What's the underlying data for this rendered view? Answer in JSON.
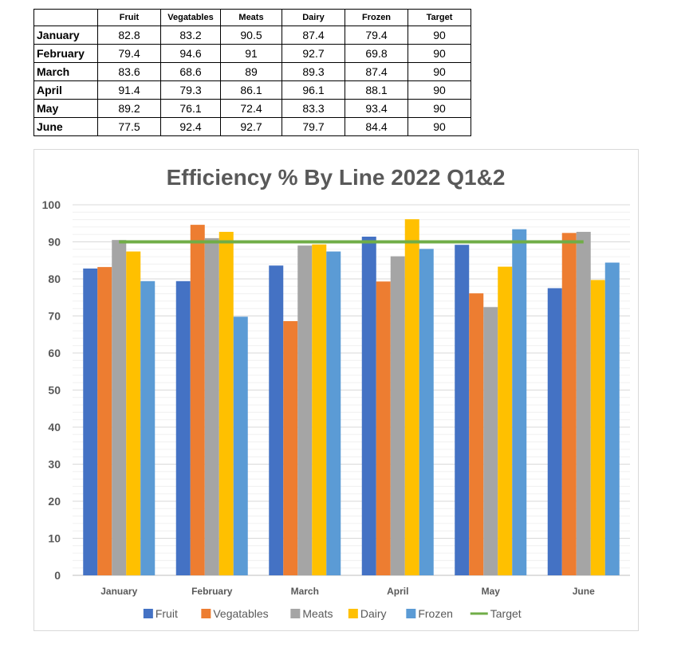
{
  "table": {
    "headers": [
      "",
      "Fruit",
      "Vegatables",
      "Meats",
      "Dairy",
      "Frozen",
      "Target"
    ],
    "rows": [
      {
        "label": "January",
        "values": [
          "82.8",
          "83.2",
          "90.5",
          "87.4",
          "79.4",
          "90"
        ]
      },
      {
        "label": "February",
        "values": [
          "79.4",
          "94.6",
          "91",
          "92.7",
          "69.8",
          "90"
        ]
      },
      {
        "label": "March",
        "values": [
          "83.6",
          "68.6",
          "89",
          "89.3",
          "87.4",
          "90"
        ]
      },
      {
        "label": "April",
        "values": [
          "91.4",
          "79.3",
          "86.1",
          "96.1",
          "88.1",
          "90"
        ]
      },
      {
        "label": "May",
        "values": [
          "89.2",
          "76.1",
          "72.4",
          "83.3",
          "93.4",
          "90"
        ]
      },
      {
        "label": "June",
        "values": [
          "77.5",
          "92.4",
          "92.7",
          "79.7",
          "84.4",
          "90"
        ]
      }
    ]
  },
  "chart_data": {
    "type": "bar",
    "title": "Efficiency % By Line 2022 Q1&2",
    "xlabel": "",
    "ylabel": "",
    "ylim": [
      0,
      100
    ],
    "yticks": [
      0,
      10,
      20,
      30,
      40,
      50,
      60,
      70,
      80,
      90,
      100
    ],
    "grid": true,
    "legend_position": "bottom",
    "categories": [
      "January",
      "February",
      "March",
      "April",
      "May",
      "June"
    ],
    "series": [
      {
        "name": "Fruit",
        "color": "#4472C4",
        "values": [
          82.8,
          79.4,
          83.6,
          91.4,
          89.2,
          77.5
        ]
      },
      {
        "name": "Vegatables",
        "color": "#ED7D31",
        "values": [
          83.2,
          94.6,
          68.6,
          79.3,
          76.1,
          92.4
        ]
      },
      {
        "name": "Meats",
        "color": "#A5A5A5",
        "values": [
          90.5,
          91,
          89,
          86.1,
          72.4,
          92.7
        ]
      },
      {
        "name": "Dairy",
        "color": "#FFC000",
        "values": [
          87.4,
          92.7,
          89.3,
          96.1,
          83.3,
          79.7
        ]
      },
      {
        "name": "Frozen",
        "color": "#5B9BD5",
        "values": [
          79.4,
          69.8,
          87.4,
          88.1,
          93.4,
          84.4
        ]
      }
    ],
    "line_series": [
      {
        "name": "Target",
        "color": "#70AD47",
        "values": [
          90,
          90,
          90,
          90,
          90,
          90
        ]
      }
    ]
  }
}
